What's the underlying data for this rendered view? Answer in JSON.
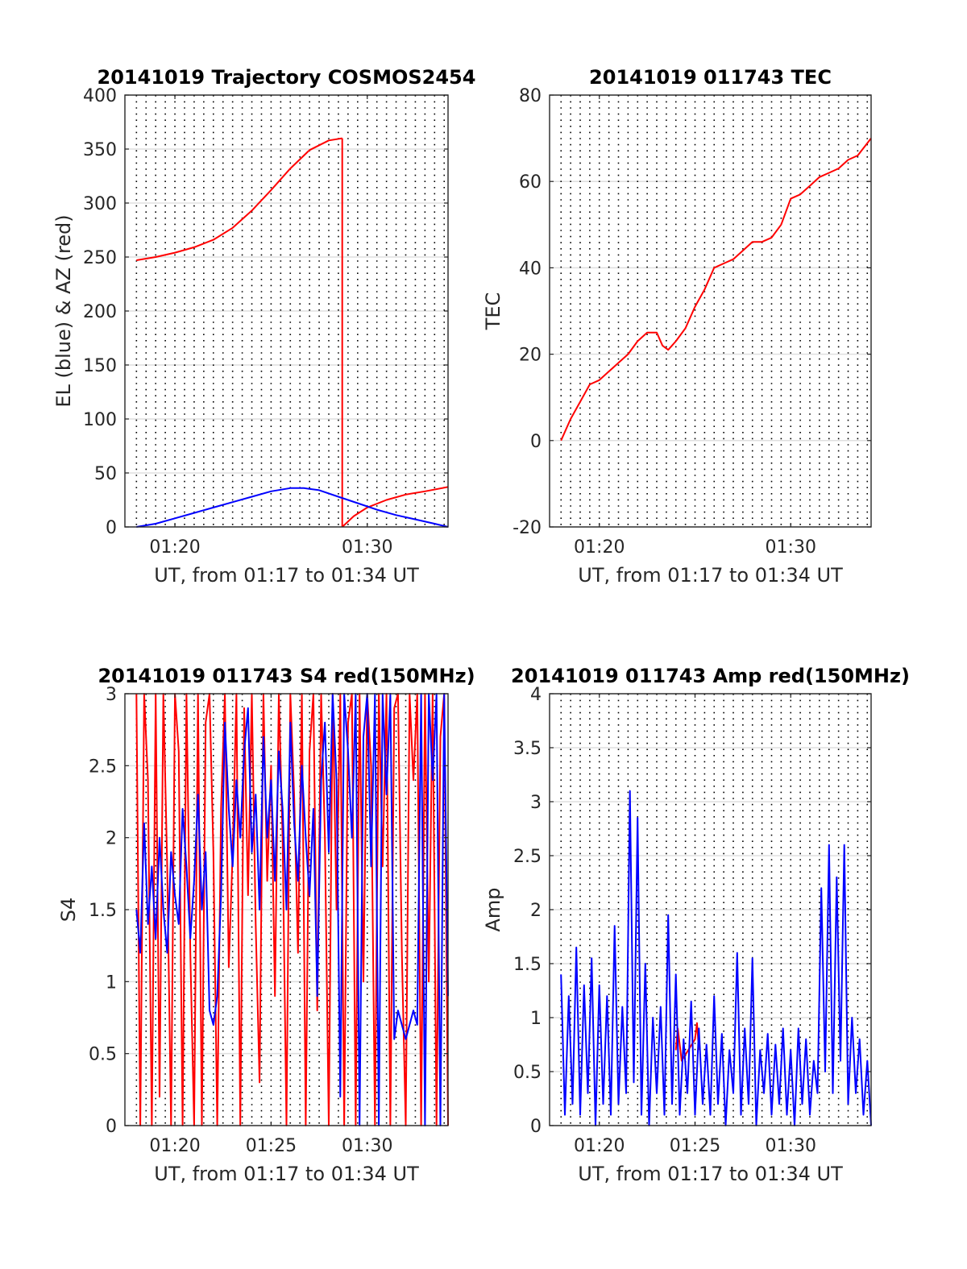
{
  "chart_data": [
    {
      "id": "p1",
      "type": "line",
      "title": "20141019 Trajectory COSMOS2454",
      "xlabel": "UT, from 01:17 to 01:34 UT",
      "ylabel": "EL (blue) & AZ (red)",
      "xlim": [
        77.4,
        94.2
      ],
      "ylim": [
        0,
        400
      ],
      "yticks": [
        0,
        50,
        100,
        150,
        200,
        250,
        300,
        350,
        400
      ],
      "xticks": [
        {
          "v": 80,
          "label": "01:20"
        },
        {
          "v": 90,
          "label": "01:30"
        }
      ],
      "grid": true,
      "series": [
        {
          "color": "#ff0000",
          "x": [
            78.0,
            79.0,
            80.0,
            81.0,
            82.0,
            83.0,
            84.0,
            85.0,
            86.0,
            87.0,
            88.0,
            88.7
          ],
          "y": [
            247,
            250,
            254,
            259,
            266,
            277,
            293,
            312,
            332,
            349,
            358,
            360
          ]
        },
        {
          "color": "#ff0000",
          "x": [
            88.7,
            88.7
          ],
          "y": [
            360,
            0
          ]
        },
        {
          "color": "#ff0000",
          "x": [
            88.7,
            89.3,
            90.0,
            91.0,
            92.0,
            93.0,
            94.2
          ],
          "y": [
            0,
            10,
            18,
            25,
            30,
            33,
            37
          ]
        },
        {
          "color": "#0000ff",
          "x": [
            78.0,
            79.0,
            80.0,
            81.0,
            82.0,
            83.0,
            84.0,
            85.0,
            86.0,
            86.7,
            87.5,
            88.5,
            89.5,
            90.5,
            91.5,
            92.5,
            93.5,
            94.2
          ],
          "y": [
            0,
            3,
            8,
            13,
            18,
            23,
            28,
            33,
            36,
            36,
            34,
            28,
            22,
            16,
            11,
            7,
            3,
            0
          ]
        }
      ]
    },
    {
      "id": "p2",
      "type": "line",
      "title": "20141019 011743 TEC",
      "xlabel": "UT, from 01:17 to 01:34 UT",
      "ylabel": "TEC",
      "xlim": [
        77.4,
        94.2
      ],
      "ylim": [
        -20,
        80
      ],
      "yticks": [
        -20,
        0,
        20,
        40,
        60,
        80
      ],
      "xticks": [
        {
          "v": 80,
          "label": "01:20"
        },
        {
          "v": 90,
          "label": "01:30"
        }
      ],
      "grid": true,
      "series": [
        {
          "color": "#ff0000",
          "x": [
            78.0,
            78.5,
            79.0,
            79.5,
            80.0,
            80.5,
            81.0,
            81.5,
            82.0,
            82.5,
            83.0,
            83.3,
            83.6,
            84.0,
            84.5,
            85.0,
            85.5,
            86.0,
            86.5,
            87.0,
            87.5,
            88.0,
            88.5,
            89.0,
            89.5,
            90.0,
            90.5,
            91.0,
            91.5,
            92.0,
            92.5,
            93.0,
            93.5,
            94.2
          ],
          "y": [
            0,
            5,
            9,
            13,
            14,
            16,
            18,
            20,
            23,
            25,
            25,
            22,
            21,
            23,
            26,
            31,
            35,
            40,
            41,
            42,
            44,
            46,
            46,
            47,
            50,
            56,
            57,
            59,
            61,
            62,
            63,
            65,
            66,
            70
          ]
        }
      ]
    },
    {
      "id": "p3",
      "type": "line",
      "title": "20141019 011743 S4 red(150MHz)",
      "xlabel": "UT, from 01:17 to 01:34 UT",
      "ylabel": "S4",
      "xlim": [
        77.4,
        94.2
      ],
      "ylim": [
        0,
        3
      ],
      "yticks": [
        0,
        0.5,
        1,
        1.5,
        2,
        2.5,
        3
      ],
      "xticks": [
        {
          "v": 80,
          "label": "01:20"
        },
        {
          "v": 85,
          "label": "01:25"
        },
        {
          "v": 90,
          "label": "01:30"
        }
      ],
      "grid": true,
      "series": [
        {
          "color": "#ff0000",
          "x": [
            78.0,
            78.2,
            78.4,
            78.6,
            78.8,
            79.0,
            79.2,
            79.4,
            79.6,
            79.8,
            80.0,
            80.2,
            80.4,
            80.6,
            80.8,
            81.0,
            81.2,
            81.4,
            81.6,
            81.8,
            82.0,
            82.2,
            82.4,
            82.6,
            82.8,
            83.0,
            83.2,
            83.4,
            83.6,
            83.8,
            84.0,
            84.2,
            84.4,
            84.6,
            84.8,
            85.0,
            85.2,
            85.4,
            85.6,
            85.8,
            86.0,
            86.2,
            86.4,
            86.6,
            86.8,
            87.0,
            87.2,
            87.4,
            87.6,
            87.8,
            88.0,
            88.2,
            88.4,
            88.6,
            88.8,
            89.0,
            89.2,
            89.4,
            89.6,
            89.8,
            90.0,
            90.2,
            90.4,
            90.6,
            90.8,
            91.0,
            91.2,
            91.4,
            91.6,
            91.8,
            92.0,
            92.2,
            92.4,
            92.6,
            92.8,
            93.0,
            93.2,
            93.4,
            93.6,
            93.8,
            94.0,
            94.2
          ],
          "y": [
            3,
            0,
            3,
            2.4,
            0,
            3,
            0.2,
            3,
            1.8,
            0,
            3,
            2.6,
            0,
            3,
            1.2,
            0,
            3,
            0,
            2.8,
            3,
            1.9,
            0,
            2.2,
            3,
            1.1,
            1.9,
            3,
            0,
            2.9,
            1.6,
            3,
            1.4,
            0.3,
            3,
            1.7,
            2.5,
            0.9,
            3,
            2.0,
            0,
            3,
            2.3,
            1.2,
            3,
            0,
            2.6,
            3,
            0.8,
            3,
            2.0,
            0,
            3,
            1.5,
            3,
            0,
            2.8,
            3,
            0,
            3,
            1.0,
            3,
            2.5,
            0,
            3,
            1.8,
            3,
            0,
            2.9,
            3,
            1.2,
            0,
            3,
            2.4,
            3,
            0,
            3,
            1.0,
            3,
            0,
            2.7,
            3,
            0
          ]
        },
        {
          "color": "#0000ff",
          "x": [
            78.0,
            78.2,
            78.4,
            78.6,
            78.8,
            79.0,
            79.2,
            79.4,
            79.6,
            79.8,
            80.0,
            80.2,
            80.4,
            80.6,
            80.8,
            81.0,
            81.2,
            81.4,
            81.6,
            81.8,
            82.0,
            82.2,
            82.4,
            82.6,
            82.8,
            83.0,
            83.2,
            83.4,
            83.6,
            83.8,
            84.0,
            84.2,
            84.4,
            84.6,
            84.8,
            85.0,
            85.2,
            85.4,
            85.6,
            85.8,
            86.0,
            86.2,
            86.4,
            86.6,
            86.8,
            87.0,
            87.2,
            87.4,
            87.6,
            87.8,
            88.0,
            88.2,
            88.4,
            88.6,
            88.8,
            89.0,
            89.2,
            89.4,
            89.6,
            89.8,
            90.0,
            90.2,
            90.4,
            90.6,
            90.8,
            91.0,
            91.2,
            91.4,
            91.6,
            91.8,
            92.0,
            92.2,
            92.4,
            92.6,
            92.8,
            93.0,
            93.2,
            93.4,
            93.6,
            93.8,
            94.0,
            94.2
          ],
          "y": [
            1.5,
            1.2,
            2.1,
            1.4,
            1.8,
            1.3,
            2.0,
            1.5,
            1.2,
            1.9,
            1.6,
            1.4,
            2.2,
            1.8,
            1.3,
            1.7,
            2.3,
            1.5,
            1.9,
            0.8,
            0.7,
            0.9,
            1.6,
            2.8,
            2.2,
            1.8,
            2.4,
            2.0,
            2.6,
            2.9,
            1.9,
            2.3,
            1.5,
            2.7,
            2.0,
            2.4,
            1.7,
            2.6,
            2.2,
            1.5,
            2.8,
            2.1,
            1.7,
            2.5,
            2.0,
            1.6,
            2.2,
            0.9,
            2.4,
            2.8,
            1.9,
            3,
            2.4,
            0.2,
            3,
            2.6,
            2.0,
            3,
            0,
            2.7,
            3,
            1.8,
            3,
            0,
            3,
            2.3,
            3,
            0.6,
            0.8,
            0.7,
            0.6,
            0.7,
            0.8,
            0.7,
            3,
            0,
            3,
            2.4,
            3,
            0,
            3,
            0.9
          ]
        }
      ]
    },
    {
      "id": "p4",
      "type": "line",
      "title": "20141019 011743 Amp red(150MHz)",
      "xlabel": "UT, from 01:17 to 01:34 UT",
      "ylabel": "Amp",
      "xlim": [
        77.4,
        94.2
      ],
      "ylim": [
        0,
        4
      ],
      "yticks": [
        0,
        0.5,
        1,
        1.5,
        2,
        2.5,
        3,
        3.5,
        4
      ],
      "xticks": [
        {
          "v": 80,
          "label": "01:20"
        },
        {
          "v": 85,
          "label": "01:25"
        },
        {
          "v": 90,
          "label": "01:30"
        }
      ],
      "grid": true,
      "series": [
        {
          "color": "#ff0000",
          "x": [
            84.0,
            84.1,
            84.2,
            84.3,
            85.0,
            85.1,
            85.2
          ],
          "y": [
            0.7,
            0.9,
            0.75,
            0.6,
            0.8,
            0.95,
            0.7
          ]
        },
        {
          "color": "#0000ff",
          "x": [
            78.0,
            78.2,
            78.4,
            78.6,
            78.8,
            79.0,
            79.2,
            79.4,
            79.6,
            79.8,
            80.0,
            80.2,
            80.4,
            80.6,
            80.8,
            81.0,
            81.2,
            81.4,
            81.6,
            81.8,
            82.0,
            82.2,
            82.4,
            82.6,
            82.8,
            83.0,
            83.2,
            83.4,
            83.6,
            83.8,
            84.0,
            84.2,
            84.4,
            84.6,
            84.8,
            85.0,
            85.2,
            85.4,
            85.6,
            85.8,
            86.0,
            86.2,
            86.4,
            86.6,
            86.8,
            87.0,
            87.2,
            87.4,
            87.6,
            87.8,
            88.0,
            88.2,
            88.4,
            88.6,
            88.8,
            89.0,
            89.2,
            89.4,
            89.6,
            89.8,
            90.0,
            90.2,
            90.4,
            90.6,
            90.8,
            91.0,
            91.2,
            91.4,
            91.6,
            91.8,
            92.0,
            92.2,
            92.4,
            92.6,
            92.8,
            93.0,
            93.2,
            93.4,
            93.6,
            93.8,
            94.0,
            94.2
          ],
          "y": [
            1.4,
            0.1,
            1.2,
            0.2,
            1.65,
            0.1,
            1.3,
            0.3,
            1.55,
            0.0,
            1.3,
            0.2,
            1.2,
            0.1,
            1.85,
            0.2,
            1.1,
            0.3,
            3.1,
            0.4,
            2.85,
            0.1,
            1.5,
            0.0,
            1.0,
            0.3,
            1.1,
            0.1,
            1.95,
            0.2,
            1.4,
            0.1,
            0.8,
            0.3,
            1.15,
            0.1,
            0.9,
            0.2,
            0.75,
            0.1,
            1.2,
            0.2,
            0.85,
            0.0,
            0.7,
            0.3,
            1.6,
            0.1,
            0.9,
            0.2,
            1.55,
            0.0,
            0.7,
            0.3,
            0.85,
            0.1,
            0.75,
            0.2,
            0.9,
            0.1,
            0.7,
            0.0,
            0.9,
            0.2,
            0.8,
            0.1,
            0.6,
            0.3,
            2.2,
            0.5,
            2.6,
            0.3,
            2.3,
            0.6,
            2.6,
            0.2,
            1.0,
            0.3,
            0.8,
            0.1,
            0.6,
            0.0
          ]
        }
      ]
    }
  ]
}
